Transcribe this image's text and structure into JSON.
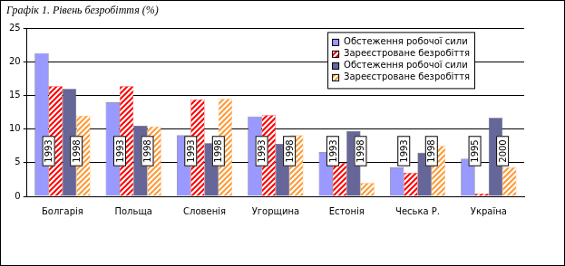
{
  "chart_data": {
    "type": "bar",
    "title": "Графік 1. Рівень безробіття (%)",
    "categories": [
      "Болгарія",
      "Польща",
      "Словенія",
      "Угорщина",
      "Естонія",
      "Чеська Р.",
      "Україна"
    ],
    "series": [
      {
        "name": "Обстеження робочої сили",
        "color": "#9999ff",
        "values": [
          21.3,
          14.0,
          9.1,
          11.9,
          6.6,
          4.3,
          5.6
        ]
      },
      {
        "name": "Зареєстроване безробіття",
        "color": "#ff0000",
        "values": [
          16.4,
          16.4,
          14.4,
          12.1,
          5.0,
          3.5,
          0.4
        ]
      },
      {
        "name": "Обстеження робочої сили",
        "color": "#666699",
        "values": [
          16.0,
          10.5,
          7.9,
          7.8,
          9.7,
          6.5,
          11.7
        ]
      },
      {
        "name": "Зареєстроване безробіття",
        "color": "#ff9933",
        "values": [
          12.0,
          10.4,
          14.5,
          9.1,
          2.0,
          7.5,
          4.3
        ]
      }
    ],
    "annotations": [
      [
        "1993",
        "1998"
      ],
      [
        "1993",
        "1998"
      ],
      [
        "1993",
        "1998"
      ],
      [
        "1993",
        "1998"
      ],
      [
        "1993",
        "1998"
      ],
      [
        "1993",
        "1998"
      ],
      [
        "1995",
        "2000"
      ]
    ],
    "ylim": [
      0,
      25
    ],
    "yticks": [
      0,
      5,
      10,
      15,
      20,
      25
    ],
    "grid": true,
    "legend": "top-right"
  }
}
